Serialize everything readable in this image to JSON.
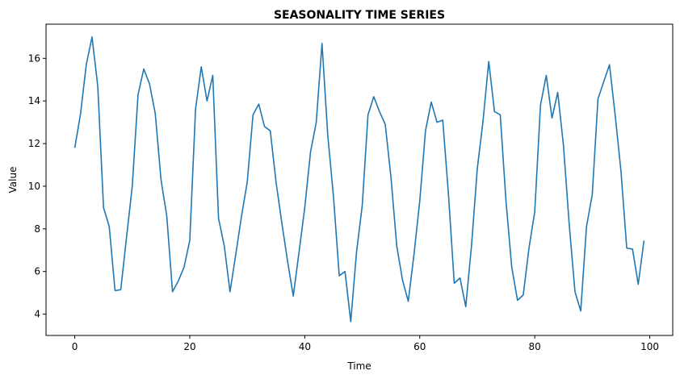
{
  "chart_data": {
    "type": "line",
    "title": "SEASONALITY TIME SERIES",
    "xlabel": "Time",
    "ylabel": "Value",
    "xlim": [
      -5,
      104
    ],
    "ylim": [
      3.0,
      17.6
    ],
    "xticks": [
      0,
      20,
      40,
      60,
      80,
      100
    ],
    "yticks": [
      4,
      6,
      8,
      10,
      12,
      14,
      16
    ],
    "grid": false,
    "line_color": "#1f77b4",
    "series": [
      {
        "x": [
          0,
          1,
          2,
          3,
          4,
          5,
          6,
          7,
          8,
          9,
          10,
          11,
          12,
          13,
          14,
          15,
          16,
          17,
          18,
          19,
          20,
          21,
          22,
          23,
          24,
          25,
          26,
          27,
          28,
          29,
          30,
          31,
          32,
          33,
          34,
          35,
          36,
          37,
          38,
          39,
          40,
          41,
          42,
          43,
          44,
          45,
          46,
          47,
          48,
          49,
          50,
          51,
          52,
          53,
          54,
          55,
          56,
          57,
          58,
          59,
          60,
          61,
          62,
          63,
          64,
          65,
          66,
          67,
          68,
          69,
          70,
          71,
          72,
          73,
          74,
          75,
          76,
          77,
          78,
          79,
          80,
          81,
          82,
          83,
          84,
          85,
          86,
          87,
          88,
          89,
          90,
          91,
          92,
          93,
          94,
          95,
          96,
          97,
          98,
          99
        ],
        "values": [
          11.8,
          13.4,
          15.7,
          17.0,
          14.7,
          9.0,
          8.1,
          5.1,
          5.15,
          7.6,
          10.0,
          14.3,
          15.5,
          14.8,
          13.4,
          10.3,
          8.6,
          5.05,
          5.55,
          6.2,
          7.45,
          13.6,
          15.6,
          14.0,
          15.2,
          8.5,
          7.2,
          5.05,
          6.8,
          8.6,
          10.2,
          13.35,
          13.85,
          12.8,
          12.6,
          10.2,
          8.3,
          6.5,
          4.85,
          6.9,
          9.0,
          11.6,
          13.0,
          16.7,
          12.4,
          9.5,
          5.8,
          6.0,
          3.65,
          6.9,
          9.1,
          13.35,
          14.2,
          13.5,
          12.9,
          10.4,
          7.2,
          5.6,
          4.6,
          6.8,
          9.3,
          12.6,
          13.95,
          13.0,
          13.1,
          9.6,
          5.45,
          5.7,
          4.35,
          7.2,
          10.8,
          13.05,
          15.85,
          13.5,
          13.35,
          9.3,
          6.2,
          4.65,
          4.9,
          7.1,
          8.8,
          13.8,
          15.2,
          13.2,
          14.4,
          11.9,
          8.2,
          5.05,
          4.15,
          8.1,
          9.6,
          14.1,
          14.9,
          15.7,
          13.3,
          10.7,
          7.1,
          7.05,
          5.4,
          7.45
        ]
      }
    ]
  }
}
